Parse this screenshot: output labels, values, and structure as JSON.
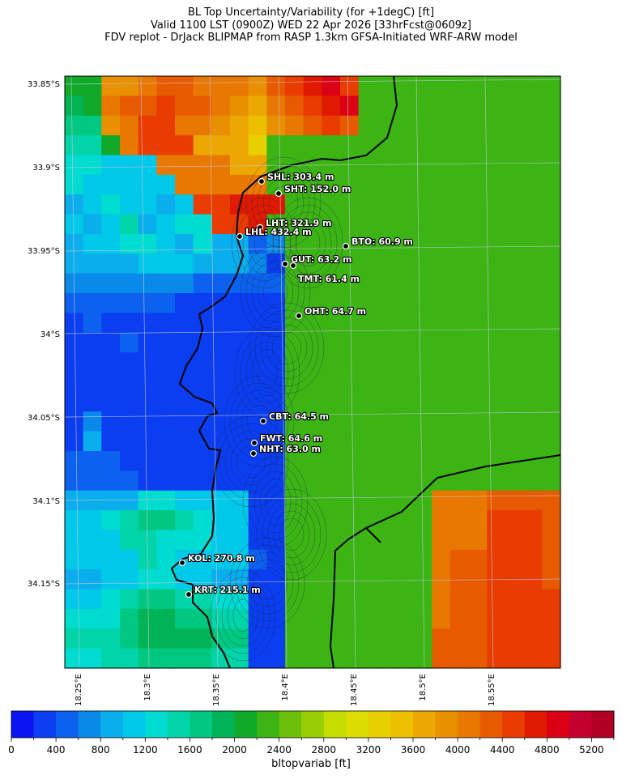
{
  "title": {
    "line1": "BL Top Uncertainty/Variability (for +1degC) [ft]",
    "line2": "Valid 1100 LST (0900Z) WED 22 Apr 2026 [33hrFcst@0609z]",
    "line3": "FDV replot - DrJack BLIPMAP from RASP 1.3km GFSA-Initiated WRF-ARW model"
  },
  "lat_labels": [
    "33.85°S",
    "33.9°S",
    "33.95°S",
    "34°S",
    "34.05°S",
    "34.1°S",
    "34.15°S"
  ],
  "lon_labels": [
    "18.25°E",
    "18.3°E",
    "18.35°E",
    "18.4°E",
    "18.45°E",
    "18.5°E",
    "18.55°E"
  ],
  "stations": [
    {
      "code": "SHL",
      "label": "SHL: 303.4 m"
    },
    {
      "code": "SHT",
      "label": "SHT: 152.0 m"
    },
    {
      "code": "LHT",
      "label": "LHT: 321.9 m"
    },
    {
      "code": "LHL",
      "label": "LHL: 432.4 m"
    },
    {
      "code": "BTO",
      "label": "BTO: 60.9 m"
    },
    {
      "code": "GUT",
      "label": "GUT: 63.2 m"
    },
    {
      "code": "TMT",
      "label": "TMT: 61.4 m"
    },
    {
      "code": "OHT",
      "label": "OHT: 64.7 m"
    },
    {
      "code": "CBT",
      "label": "CBT: 64.5 m"
    },
    {
      "code": "FWT",
      "label": "FWT: 64.6 m"
    },
    {
      "code": "NHT",
      "label": "NHT: 63.0 m"
    },
    {
      "code": "KOL",
      "label": "KOL: 270.8 m"
    },
    {
      "code": "KRT",
      "label": "KRT: 215.1 m"
    }
  ],
  "colorbar": {
    "label": "bltopvariab [ft]",
    "min": 0,
    "max": 5400,
    "step": 200,
    "ticks": [
      "0",
      "400",
      "800",
      "1200",
      "1600",
      "2000",
      "2400",
      "2800",
      "3200",
      "3600",
      "4000",
      "4400",
      "4800",
      "5200"
    ],
    "colors": [
      "#0a14f0",
      "#0a3ef0",
      "#0c62ee",
      "#0a8ae8",
      "#0aaeec",
      "#00c8e8",
      "#00dcd0",
      "#00d4a8",
      "#00c880",
      "#00b456",
      "#10aa28",
      "#3cb414",
      "#6cc00a",
      "#98cc04",
      "#c4dc00",
      "#dcdc00",
      "#e8d000",
      "#ecc000",
      "#eca800",
      "#e89000",
      "#e87800",
      "#e85a00",
      "#e83c00",
      "#e01a00",
      "#dc0014",
      "#c40030",
      "#b00024"
    ]
  },
  "grid": {
    "rows": [
      "112233333333332222222222000",
      "023333333333332222222222000",
      "044333333333322222222222000",
      "551333333333331111111100000",
      "222333333330000000000000000",
      "111333333330000000000000000",
      "000000000000000000000000000",
      "000000000000000000000000000",
      "000000000000000000000000000",
      "000000000000000000000000000",
      "000000000000000000000000000",
      "000000000000000000000000000",
      "000000000000000000000000000",
      "000000000000000000000000000",
      "000000000000000000000000000",
      "000000000000000000000000000",
      "000000000000000000000000000",
      "000000000000000000000000000",
      "000000000000000000000000000",
      "000000000000000000000000000",
      "000000000000000000000000000",
      "000000000000000000000000000",
      "000000000000000000000000000",
      "000000000000000000000000000",
      "000000000000000000000000000",
      "000000000000000000000000000",
      "000000000000000000000000000",
      "000000000000000000000000000",
      "000000000000000000000000000",
      "000000000000000000000000000"
    ],
    "values": [
      "AAJJKLLKKKJLMNOMBBBBBBBBBBB",
      "9AKLLMLLKJIKLMNOBBBBBBBBBBB",
      "88JKMMKKJIHJKLMLBBBBBBBBBBB",
      "77AKMMMIIIGBBBBBBBBBBBBBBBB",
      "66555KKKKIIBBBBBBBBBBBBBBBB",
      "655555KKKKKBBBBBBBBBBBBBBBB",
      "4565545MMNNNBBBBBBBBBBBBBBB",
      "54574566MMNBBBBBBBBBBBBBBBB",
      "455665464423BBBBBBBBBBBBBBB",
      "444455544431BBBBBBBBBBBBBBB",
      "333333322222BBBBBBBBBBBBBBB",
      "222222111111BBBBBBBBBBBBBBB",
      "121111111111BBBBBBBBBBBBBBB",
      "111211111111BBBBBBBBBBBBBBB",
      "111111111111BBBBBBBBBBBBBBB",
      "111111111111BBBBBBBBBBBBBBB",
      "111111111111BBBBBBBBBBBBBBB",
      "131111111111BBBBBBBBBBBBBBB",
      "141111111111BBBBBBBBBBBBBBB",
      "222111111111BBBBBBBBBBBBBBB",
      "222211111111BBBBBBBBBBBBBBB",
      "444466555511BBBBBBBBKKKLLLL",
      "556788765511BBBBBBBBKKKMMML",
      "555776665511BBBBBBBBKKKMMML",
      "555576555521BBBBBBBBKLLMMML",
      "445566554411BBBBBBBBKLLMMML",
      "556788776611BBBBBBBBKLLMMMM",
      "666899887711BBBBBBBBKLLMMMM",
      "777899998811BBBBBBBBLLLMMMM",
      "667788887711BBBBBBBBLLLMMMM"
    ]
  }
}
